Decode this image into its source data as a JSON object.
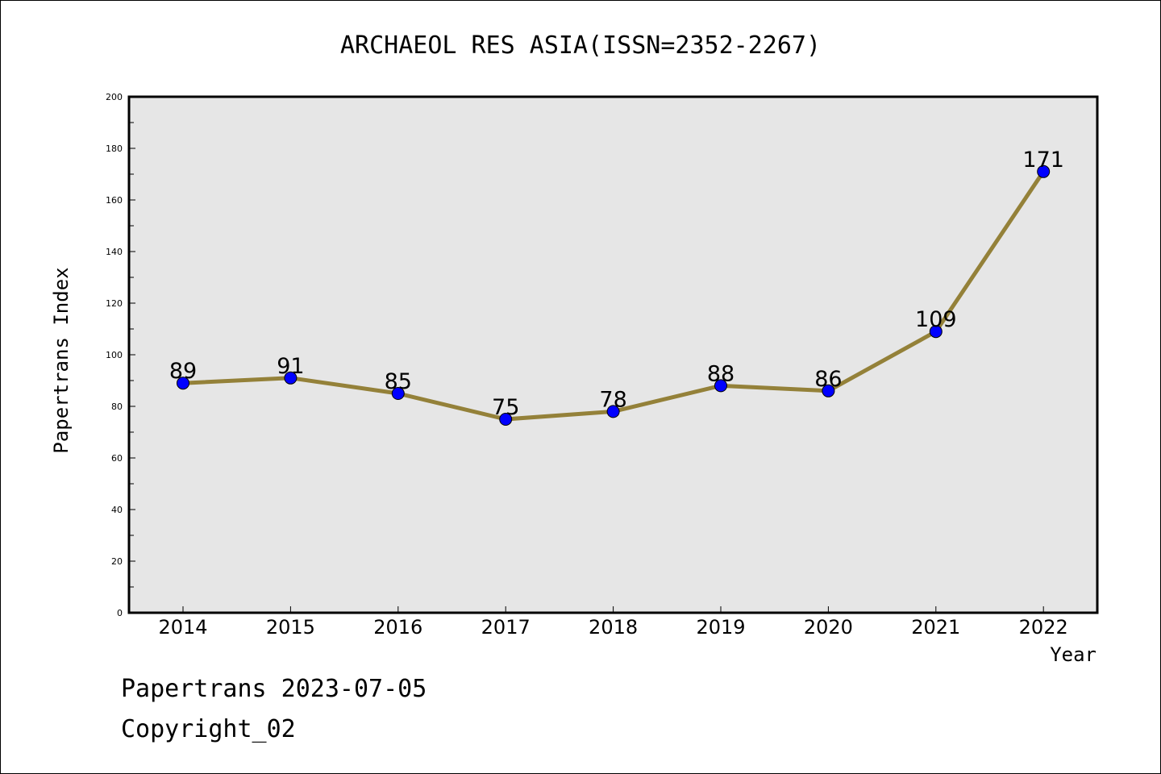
{
  "footer": {
    "line1": "Papertrans 2023-07-05",
    "line2": "Copyright_02"
  },
  "chart_data": {
    "type": "line",
    "title": "ARCHAEOL RES ASIA(ISSN=2352-2267)",
    "xlabel": "Year",
    "ylabel": "Papertrans Index",
    "categories": [
      "2014",
      "2015",
      "2016",
      "2017",
      "2018",
      "2019",
      "2020",
      "2021",
      "2022"
    ],
    "series": [
      {
        "values": [
          89,
          91,
          85,
          75,
          78,
          88,
          86,
          109,
          171
        ]
      }
    ],
    "data_labels": [
      "89",
      "91",
      "85",
      "75",
      "78",
      "88",
      "86",
      "109",
      "171"
    ],
    "ylim": [
      0,
      200
    ],
    "yticks": [
      0,
      20,
      40,
      60,
      80,
      100,
      120,
      140,
      160,
      180,
      200
    ],
    "grid": false,
    "colors": {
      "line": "#948139",
      "marker": "#0000ff",
      "plot_bg": "#e6e6e6"
    }
  }
}
